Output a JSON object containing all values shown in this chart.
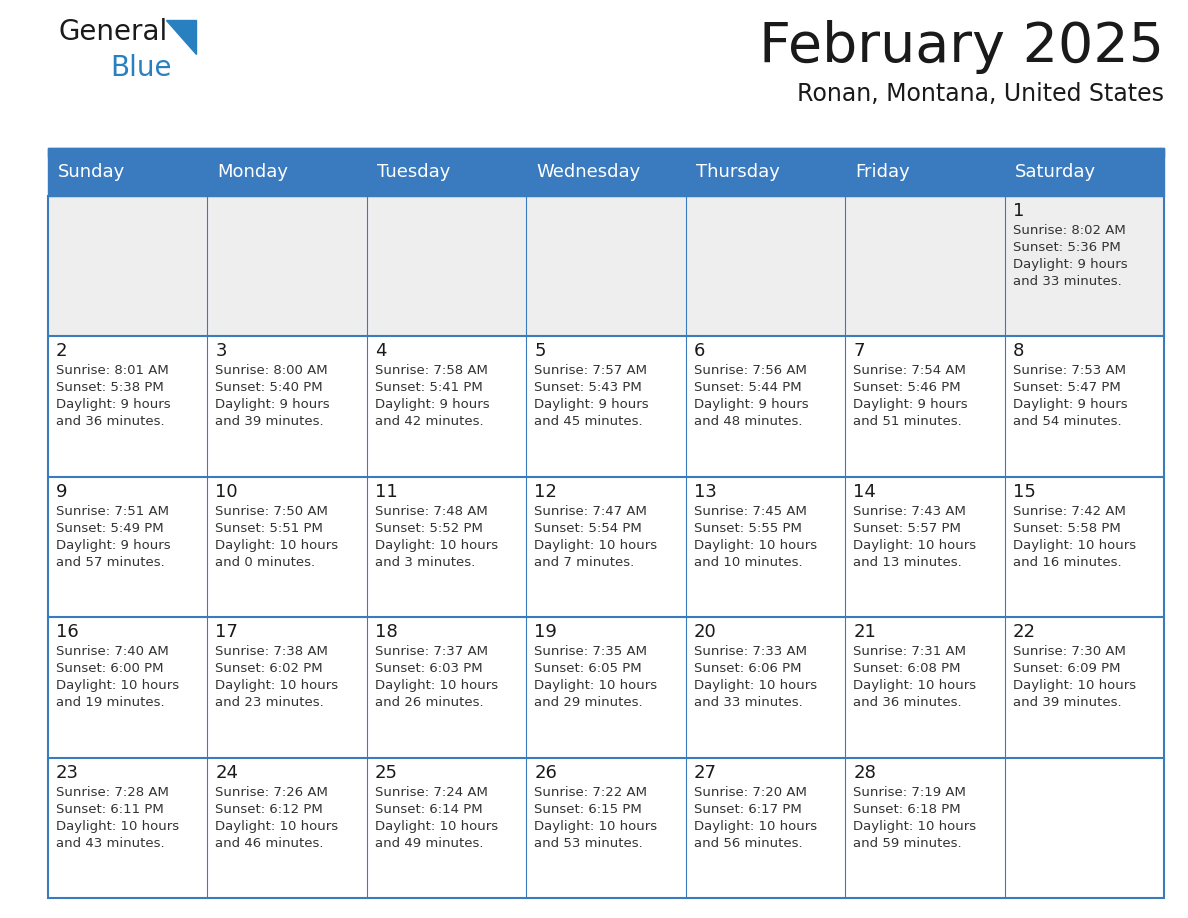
{
  "title": "February 2025",
  "subtitle": "Ronan, Montana, United States",
  "header_color": "#3a7abf",
  "header_text_color": "#ffffff",
  "cell_bg_white": "#ffffff",
  "cell_bg_grey": "#eeeeee",
  "border_color": "#3a7abf",
  "day_names": [
    "Sunday",
    "Monday",
    "Tuesday",
    "Wednesday",
    "Thursday",
    "Friday",
    "Saturday"
  ],
  "title_color": "#1a1a1a",
  "subtitle_color": "#1a1a1a",
  "cell_text_color": "#333333",
  "day_number_color": "#1a1a1a",
  "logo_general_color": "#1a1a1a",
  "logo_blue_color": "#2980c0",
  "logo_triangle_color": "#2980c0",
  "weeks": [
    [
      {
        "day": "",
        "info": ""
      },
      {
        "day": "",
        "info": ""
      },
      {
        "day": "",
        "info": ""
      },
      {
        "day": "",
        "info": ""
      },
      {
        "day": "",
        "info": ""
      },
      {
        "day": "",
        "info": ""
      },
      {
        "day": "1",
        "info": "Sunrise: 8:02 AM\nSunset: 5:36 PM\nDaylight: 9 hours\nand 33 minutes."
      }
    ],
    [
      {
        "day": "2",
        "info": "Sunrise: 8:01 AM\nSunset: 5:38 PM\nDaylight: 9 hours\nand 36 minutes."
      },
      {
        "day": "3",
        "info": "Sunrise: 8:00 AM\nSunset: 5:40 PM\nDaylight: 9 hours\nand 39 minutes."
      },
      {
        "day": "4",
        "info": "Sunrise: 7:58 AM\nSunset: 5:41 PM\nDaylight: 9 hours\nand 42 minutes."
      },
      {
        "day": "5",
        "info": "Sunrise: 7:57 AM\nSunset: 5:43 PM\nDaylight: 9 hours\nand 45 minutes."
      },
      {
        "day": "6",
        "info": "Sunrise: 7:56 AM\nSunset: 5:44 PM\nDaylight: 9 hours\nand 48 minutes."
      },
      {
        "day": "7",
        "info": "Sunrise: 7:54 AM\nSunset: 5:46 PM\nDaylight: 9 hours\nand 51 minutes."
      },
      {
        "day": "8",
        "info": "Sunrise: 7:53 AM\nSunset: 5:47 PM\nDaylight: 9 hours\nand 54 minutes."
      }
    ],
    [
      {
        "day": "9",
        "info": "Sunrise: 7:51 AM\nSunset: 5:49 PM\nDaylight: 9 hours\nand 57 minutes."
      },
      {
        "day": "10",
        "info": "Sunrise: 7:50 AM\nSunset: 5:51 PM\nDaylight: 10 hours\nand 0 minutes."
      },
      {
        "day": "11",
        "info": "Sunrise: 7:48 AM\nSunset: 5:52 PM\nDaylight: 10 hours\nand 3 minutes."
      },
      {
        "day": "12",
        "info": "Sunrise: 7:47 AM\nSunset: 5:54 PM\nDaylight: 10 hours\nand 7 minutes."
      },
      {
        "day": "13",
        "info": "Sunrise: 7:45 AM\nSunset: 5:55 PM\nDaylight: 10 hours\nand 10 minutes."
      },
      {
        "day": "14",
        "info": "Sunrise: 7:43 AM\nSunset: 5:57 PM\nDaylight: 10 hours\nand 13 minutes."
      },
      {
        "day": "15",
        "info": "Sunrise: 7:42 AM\nSunset: 5:58 PM\nDaylight: 10 hours\nand 16 minutes."
      }
    ],
    [
      {
        "day": "16",
        "info": "Sunrise: 7:40 AM\nSunset: 6:00 PM\nDaylight: 10 hours\nand 19 minutes."
      },
      {
        "day": "17",
        "info": "Sunrise: 7:38 AM\nSunset: 6:02 PM\nDaylight: 10 hours\nand 23 minutes."
      },
      {
        "day": "18",
        "info": "Sunrise: 7:37 AM\nSunset: 6:03 PM\nDaylight: 10 hours\nand 26 minutes."
      },
      {
        "day": "19",
        "info": "Sunrise: 7:35 AM\nSunset: 6:05 PM\nDaylight: 10 hours\nand 29 minutes."
      },
      {
        "day": "20",
        "info": "Sunrise: 7:33 AM\nSunset: 6:06 PM\nDaylight: 10 hours\nand 33 minutes."
      },
      {
        "day": "21",
        "info": "Sunrise: 7:31 AM\nSunset: 6:08 PM\nDaylight: 10 hours\nand 36 minutes."
      },
      {
        "day": "22",
        "info": "Sunrise: 7:30 AM\nSunset: 6:09 PM\nDaylight: 10 hours\nand 39 minutes."
      }
    ],
    [
      {
        "day": "23",
        "info": "Sunrise: 7:28 AM\nSunset: 6:11 PM\nDaylight: 10 hours\nand 43 minutes."
      },
      {
        "day": "24",
        "info": "Sunrise: 7:26 AM\nSunset: 6:12 PM\nDaylight: 10 hours\nand 46 minutes."
      },
      {
        "day": "25",
        "info": "Sunrise: 7:24 AM\nSunset: 6:14 PM\nDaylight: 10 hours\nand 49 minutes."
      },
      {
        "day": "26",
        "info": "Sunrise: 7:22 AM\nSunset: 6:15 PM\nDaylight: 10 hours\nand 53 minutes."
      },
      {
        "day": "27",
        "info": "Sunrise: 7:20 AM\nSunset: 6:17 PM\nDaylight: 10 hours\nand 56 minutes."
      },
      {
        "day": "28",
        "info": "Sunrise: 7:19 AM\nSunset: 6:18 PM\nDaylight: 10 hours\nand 59 minutes."
      },
      {
        "day": "",
        "info": ""
      }
    ]
  ]
}
